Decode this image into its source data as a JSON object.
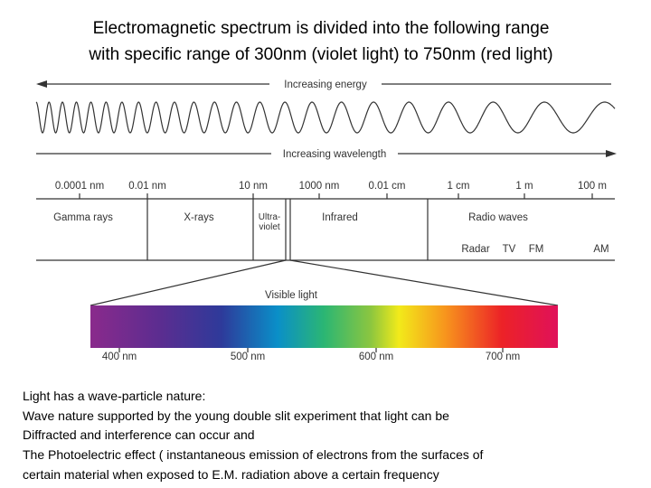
{
  "title": {
    "lines": [
      "Electromagnetic spectrum is divided into the following range",
      "with specific range of 300nm (violet light) to 750nm (red light)"
    ]
  },
  "energy_arrow": {
    "label": "Increasing energy"
  },
  "wavelength_arrow": {
    "label": "Increasing wavelength"
  },
  "scale": {
    "ticks": [
      "0.0001 nm",
      "0.01 nm",
      "10 nm",
      "1000 nm",
      "0.01 cm",
      "1 cm",
      "1 m",
      "100 m"
    ]
  },
  "regions": {
    "gamma": "Gamma rays",
    "xray": "X-rays",
    "uv": [
      "Ultra-",
      "violet"
    ],
    "infrared": "Infrared",
    "radio": "Radio waves"
  },
  "radio_bands": [
    "Radar",
    "TV",
    "FM",
    "AM"
  ],
  "visible": {
    "label": "Visible light",
    "ticks": [
      "400 nm",
      "500 nm",
      "600 nm",
      "700 nm"
    ]
  },
  "body": {
    "lines": [
      "Light has a wave-particle nature:",
      "Wave nature supported by the young double slit experiment that light can be",
      "Diffracted and interference can occur and",
      "The Photoelectric effect ( instantaneous emission of electrons from the surfaces of",
      "certain material when exposed to E.M. radiation above a certain frequency"
    ]
  }
}
